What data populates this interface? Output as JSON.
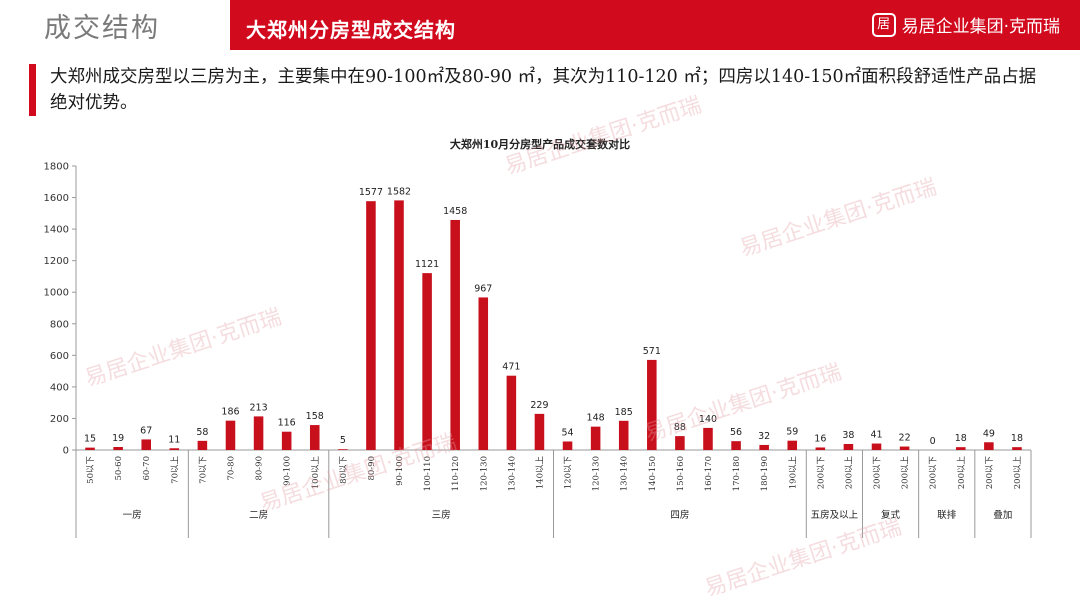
{
  "header": {
    "section_title": "成交结构",
    "page_title": "大郑州分房型成交结构",
    "brand_text": "易居企业集团·克而瑞",
    "brand_logo": "居"
  },
  "summary": "大郑州成交房型以三房为主，主要集中在90-100㎡及80-90 ㎡，其次为110-120 ㎡；四房以140-150㎡面积段舒适性产品占据绝对优势。",
  "colors": {
    "accent": "#d20a1e",
    "bar": "#c8101c"
  },
  "chart_data": {
    "type": "bar",
    "title": "大郑州10月分房型产品成交套数对比",
    "ylim": [
      0,
      1800
    ],
    "yticks": [
      0,
      200,
      400,
      600,
      800,
      1000,
      1200,
      1400,
      1600,
      1800
    ],
    "grid": false,
    "groups": [
      {
        "label": "一房",
        "categories": [
          "50以下",
          "50-60",
          "60-70",
          "70以上"
        ],
        "values": [
          15,
          19,
          67,
          11
        ]
      },
      {
        "label": "二房",
        "categories": [
          "70以下",
          "70-80",
          "80-90",
          "90-100",
          "100以上"
        ],
        "values": [
          58,
          186,
          213,
          116,
          158
        ]
      },
      {
        "label": "三房",
        "categories": [
          "80以下",
          "80-90",
          "90-100",
          "100-110",
          "110-120",
          "120-130",
          "130-140",
          "140以上"
        ],
        "values": [
          5,
          1577,
          1582,
          1121,
          1458,
          967,
          471,
          229
        ]
      },
      {
        "label": "四房",
        "categories": [
          "120以下",
          "120-130",
          "130-140",
          "140-150",
          "150-160",
          "160-170",
          "170-180",
          "180-190",
          "190以上"
        ],
        "values": [
          54,
          148,
          185,
          571,
          88,
          140,
          56,
          32,
          59
        ]
      },
      {
        "label": "五房及以上",
        "categories": [
          "200以下",
          "200以上"
        ],
        "values": [
          16,
          38
        ]
      },
      {
        "label": "复式",
        "categories": [
          "200以下",
          "200以上"
        ],
        "values": [
          41,
          22
        ]
      },
      {
        "label": "联排",
        "categories": [
          "200以下",
          "200以上"
        ],
        "values": [
          0,
          18
        ]
      },
      {
        "label": "叠加",
        "categories": [
          "200以下",
          "200以上"
        ],
        "values": [
          49,
          18
        ]
      }
    ]
  }
}
